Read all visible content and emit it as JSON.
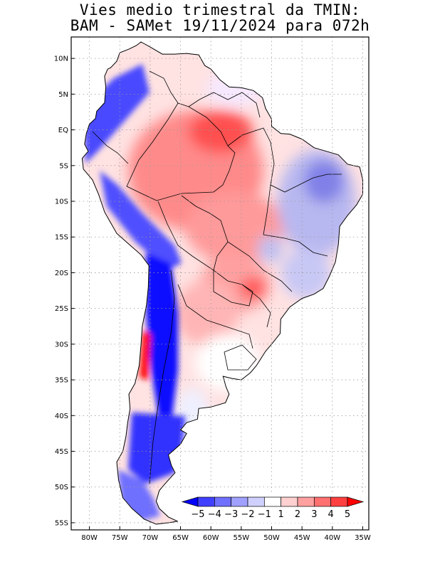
{
  "title": {
    "line1": "Vies medio trimestral da TMIN:",
    "line2": "BAM - SAMet 19/11/2024  para 072h"
  },
  "map": {
    "lon_range": [
      -83,
      -34
    ],
    "lat_range": [
      -56,
      13
    ],
    "lon_ticks": [
      {
        "value": -80,
        "label": "80W"
      },
      {
        "value": -75,
        "label": "75W"
      },
      {
        "value": -70,
        "label": "70W"
      },
      {
        "value": -65,
        "label": "65W"
      },
      {
        "value": -60,
        "label": "60W"
      },
      {
        "value": -55,
        "label": "55W"
      },
      {
        "value": -50,
        "label": "50W"
      },
      {
        "value": -45,
        "label": "45W"
      },
      {
        "value": -40,
        "label": "40W"
      },
      {
        "value": -35,
        "label": "35W"
      }
    ],
    "lat_ticks": [
      {
        "value": 10,
        "label": "10N"
      },
      {
        "value": 5,
        "label": "5N"
      },
      {
        "value": 0,
        "label": "EQ"
      },
      {
        "value": -5,
        "label": "5S"
      },
      {
        "value": -10,
        "label": "10S"
      },
      {
        "value": -15,
        "label": "15S"
      },
      {
        "value": -20,
        "label": "20S"
      },
      {
        "value": -25,
        "label": "25S"
      },
      {
        "value": -30,
        "label": "30S"
      },
      {
        "value": -35,
        "label": "35S"
      },
      {
        "value": -40,
        "label": "40S"
      },
      {
        "value": -45,
        "label": "45S"
      },
      {
        "value": -50,
        "label": "50S"
      },
      {
        "value": -55,
        "label": "55S"
      }
    ]
  },
  "colorbar": {
    "labels": [
      "-5",
      "-4",
      "-3",
      "-2",
      "-1",
      "1",
      "2",
      "3",
      "4",
      "5"
    ],
    "colors": [
      "#0000ff",
      "#4040ff",
      "#7070ff",
      "#a0a0ff",
      "#d0d0ff",
      "#ffffff",
      "#ffd0d0",
      "#ffa0a0",
      "#ff7070",
      "#ff4040",
      "#ff0000"
    ]
  },
  "colors": {
    "coast": "#000000",
    "grid": "#9a9a9a"
  }
}
